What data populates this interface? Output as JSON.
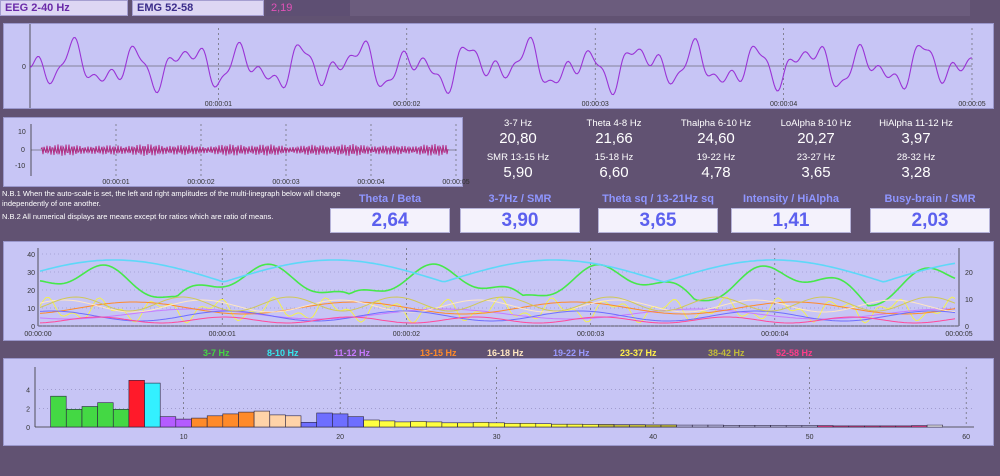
{
  "tabs": {
    "eeg": "EEG 2-40 Hz",
    "emg": "EMG 52-58",
    "value": "2,19"
  },
  "eeg_chart": {
    "y_tick": "0",
    "time_ticks": [
      "00:00:01",
      "00:00:02",
      "00:00:03",
      "00:00:04",
      "00:00:05"
    ]
  },
  "emg_chart": {
    "y_ticks": [
      "10",
      "0",
      "-10"
    ],
    "time_ticks": [
      "00:00:01",
      "00:00:02",
      "00:00:03",
      "00:00:04",
      "00:00:05"
    ]
  },
  "bands": [
    {
      "label": "3-7 Hz",
      "value": "20,80"
    },
    {
      "label": "Theta 4-8 Hz",
      "value": "21,66"
    },
    {
      "label": "Thalpha 6-10 Hz",
      "value": "24,60"
    },
    {
      "label": "LoAlpha 8-10 Hz",
      "value": "20,27"
    },
    {
      "label": "HiAlpha 11-12 Hz",
      "value": "3,97"
    },
    {
      "label": "SMR 13-15 Hz",
      "value": "5,90"
    },
    {
      "label": "15-18 Hz",
      "value": "6,60"
    },
    {
      "label": "19-22 Hz",
      "value": "4,78"
    },
    {
      "label": "23-27 Hz",
      "value": "3,65"
    },
    {
      "label": "28-32 Hz",
      "value": "3,28"
    }
  ],
  "notes": [
    "N.B.1 When the auto-scale is set, the left and right amplitudes of the multi-linegraph below will change",
    "independently of one another.",
    "N.B.2 All numerical displays are means except for ratios which are ratio of means."
  ],
  "ratios": [
    {
      "label": "Theta / Beta",
      "value": "2,64"
    },
    {
      "label": "3-7Hz / SMR",
      "value": "3,90"
    },
    {
      "label": "Theta sq / 13-21Hz sq",
      "value": "3,65"
    },
    {
      "label": "Intensity / HiAlpha",
      "value": "1,41"
    },
    {
      "label": "Busy-brain / SMR",
      "value": "2,03"
    }
  ],
  "trend_chart": {
    "left_ticks": [
      "40",
      "30",
      "20",
      "10",
      "0"
    ],
    "right_ticks": [
      "20",
      "10",
      "0"
    ],
    "time_ticks": [
      "00:00:00",
      "00:00:01",
      "00:00:02",
      "00:00:03",
      "00:00:04",
      "00:00:05"
    ]
  },
  "legend": [
    {
      "label": "3-7 Hz",
      "color": "#44d844"
    },
    {
      "label": "8-10 Hz",
      "color": "#37e6ee"
    },
    {
      "label": "11-12 Hz",
      "color": "#c77bff"
    },
    {
      "label": "13-15 Hz",
      "color": "#ff8a2a"
    },
    {
      "label": "16-18 Hz",
      "color": "#ffe7c2"
    },
    {
      "label": "19-22 Hz",
      "color": "#9a9aff"
    },
    {
      "label": "23-37 Hz",
      "color": "#fff04a"
    },
    {
      "label": "38-42 Hz",
      "color": "#c2bb3a"
    },
    {
      "label": "52-58 Hz",
      "color": "#ff3d8a"
    }
  ],
  "spectrum": {
    "x_ticks": [
      "10",
      "20",
      "30",
      "40",
      "50",
      "60"
    ],
    "y_ticks": [
      "4",
      "2",
      "0"
    ],
    "y_max": 6,
    "bars": [
      3.3,
      1.9,
      2.2,
      2.6,
      1.9,
      5.0,
      4.7,
      1.1,
      0.85,
      0.95,
      1.2,
      1.4,
      1.6,
      1.7,
      1.3,
      1.2,
      0.5,
      1.5,
      1.4,
      1.1,
      0.75,
      0.65,
      0.55,
      0.6,
      0.55,
      0.45,
      0.45,
      0.5,
      0.45,
      0.4,
      0.4,
      0.35,
      0.3,
      0.3,
      0.28,
      0.28,
      0.25,
      0.25,
      0.22,
      0.22,
      0.2,
      0.2,
      0.2,
      0.18,
      0.18,
      0.18,
      0.15,
      0.15,
      0.15,
      0.15,
      0.12,
      0.12,
      0.12,
      0.12,
      0.12,
      0.15,
      0.2
    ],
    "bar_colors": [
      "#44d844",
      "#44d844",
      "#44d844",
      "#44d844",
      "#44d844",
      "#ff1a2a",
      "#33f0ff",
      "#b45cff",
      "#b45cff",
      "#ff8a2a",
      "#ff8a2a",
      "#ff8a2a",
      "#ff8a2a",
      "#ffd3a8",
      "#ffd3a8",
      "#ffd3a8",
      "#6e6eff",
      "#6e6eff",
      "#6e6eff",
      "#6e6eff",
      "#ffff40",
      "#ffff40",
      "#ffff40",
      "#ffff40",
      "#ffff40",
      "#ffff40",
      "#ffff40",
      "#ffff40",
      "#ffff40",
      "#ffff40",
      "#ffff40",
      "#ffff40",
      "#ffff40",
      "#ffff40",
      "#ffff40",
      "#c2bb3a",
      "#c2bb3a",
      "#c2bb3a",
      "#c2bb3a",
      "#c2bb3a",
      "#c9c9f2",
      "#c9c9f2",
      "#c9c9f2",
      "#c9c9f2",
      "#c9c9f2",
      "#c9c9f2",
      "#c9c9f2",
      "#c9c9f2",
      "#c9c9f2",
      "#ff3d8a",
      "#ff3d8a",
      "#ff3d8a",
      "#ff3d8a",
      "#ff3d8a",
      "#ff3d8a",
      "#ff3d8a",
      "#ffffff"
    ]
  }
}
